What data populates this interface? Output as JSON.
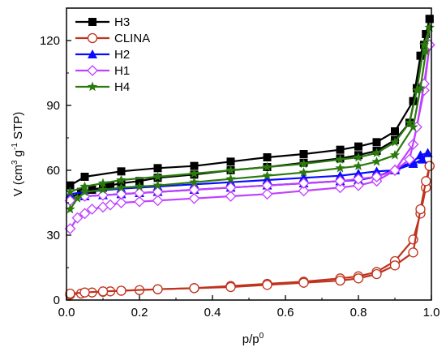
{
  "chart_data": {
    "type": "line",
    "xlabel": "p/p",
    "xlabel_sup": "0",
    "ylabel_parts": [
      "V (cm",
      "3",
      " g",
      "-1",
      " STP)"
    ],
    "xlim": [
      0.0,
      1.0
    ],
    "ylim": [
      0,
      135
    ],
    "xticks": [
      0.0,
      0.2,
      0.4,
      0.6,
      0.8,
      1.0
    ],
    "xtick_labels": [
      "0.0",
      "0.2",
      "0.4",
      "0.6",
      "0.8",
      "1.0"
    ],
    "yticks": [
      0,
      30,
      60,
      90,
      120
    ],
    "ytick_labels": [
      "0",
      "30",
      "60",
      "90",
      "120"
    ],
    "grid": false,
    "legend_position": "top-left",
    "series": [
      {
        "name": "H3",
        "color": "#000000",
        "marker": "square",
        "adsorption": [
          [
            0.01,
            53
          ],
          [
            0.05,
            57
          ],
          [
            0.15,
            59.5
          ],
          [
            0.25,
            61
          ],
          [
            0.35,
            62
          ],
          [
            0.45,
            64
          ],
          [
            0.55,
            66
          ],
          [
            0.65,
            67.5
          ],
          [
            0.75,
            69.5
          ],
          [
            0.8,
            71
          ],
          [
            0.85,
            73
          ],
          [
            0.9,
            78
          ],
          [
            0.95,
            92
          ],
          [
            0.97,
            113
          ],
          [
            0.985,
            123
          ],
          [
            0.995,
            130
          ]
        ],
        "desorption": [
          [
            0.995,
            130
          ],
          [
            0.98,
            118
          ],
          [
            0.96,
            98
          ],
          [
            0.94,
            82
          ],
          [
            0.9,
            74
          ],
          [
            0.85,
            69
          ],
          [
            0.8,
            67
          ],
          [
            0.75,
            65.5
          ],
          [
            0.65,
            63.5
          ],
          [
            0.55,
            61.5
          ],
          [
            0.45,
            60
          ],
          [
            0.35,
            58
          ],
          [
            0.25,
            56.5
          ],
          [
            0.2,
            55
          ],
          [
            0.15,
            54
          ],
          [
            0.12,
            53
          ],
          [
            0.1,
            52
          ],
          [
            0.07,
            51
          ],
          [
            0.04,
            50
          ],
          [
            0.01,
            47
          ]
        ]
      },
      {
        "name": "CLINA",
        "color": "#c0331e",
        "marker": "circle",
        "adsorption": [
          [
            0.01,
            2.5
          ],
          [
            0.04,
            3
          ],
          [
            0.07,
            3.5
          ],
          [
            0.1,
            3.8
          ],
          [
            0.12,
            4
          ],
          [
            0.15,
            4.3
          ],
          [
            0.2,
            4.6
          ],
          [
            0.25,
            5
          ],
          [
            0.35,
            5.5
          ],
          [
            0.45,
            6.5
          ],
          [
            0.55,
            7.5
          ],
          [
            0.65,
            8.5
          ],
          [
            0.75,
            10
          ],
          [
            0.8,
            11
          ],
          [
            0.85,
            13
          ],
          [
            0.9,
            18
          ],
          [
            0.95,
            28
          ],
          [
            0.97,
            40
          ],
          [
            0.985,
            52
          ],
          [
            0.995,
            62
          ]
        ],
        "desorption": [
          [
            0.995,
            62
          ],
          [
            0.985,
            55
          ],
          [
            0.97,
            42
          ],
          [
            0.95,
            22
          ],
          [
            0.9,
            16
          ],
          [
            0.85,
            12
          ],
          [
            0.8,
            10
          ],
          [
            0.75,
            9
          ],
          [
            0.65,
            8
          ],
          [
            0.55,
            7
          ],
          [
            0.45,
            6
          ],
          [
            0.35,
            5.5
          ],
          [
            0.25,
            5
          ],
          [
            0.15,
            4.3
          ],
          [
            0.1,
            4
          ],
          [
            0.05,
            3.5
          ],
          [
            0.01,
            3
          ]
        ]
      },
      {
        "name": "H2",
        "color": "#0a0aff",
        "marker": "triangle",
        "adsorption": [
          [
            0.01,
            49
          ],
          [
            0.05,
            50
          ],
          [
            0.15,
            51.5
          ],
          [
            0.25,
            52.5
          ],
          [
            0.35,
            53.5
          ],
          [
            0.45,
            54.5
          ],
          [
            0.55,
            55.5
          ],
          [
            0.65,
            56.5
          ],
          [
            0.75,
            57.5
          ],
          [
            0.8,
            58.5
          ],
          [
            0.85,
            59.5
          ],
          [
            0.9,
            60
          ],
          [
            0.95,
            63
          ],
          [
            0.975,
            65
          ],
          [
            0.99,
            68
          ]
        ],
        "desorption": [
          [
            0.99,
            68
          ],
          [
            0.97,
            67
          ],
          [
            0.95,
            64
          ],
          [
            0.9,
            60.5
          ],
          [
            0.85,
            57
          ],
          [
            0.8,
            55.5
          ],
          [
            0.75,
            55
          ],
          [
            0.65,
            54
          ],
          [
            0.55,
            53
          ],
          [
            0.45,
            52
          ],
          [
            0.35,
            51
          ],
          [
            0.25,
            50
          ],
          [
            0.2,
            49.5
          ],
          [
            0.15,
            49
          ],
          [
            0.1,
            48.5
          ],
          [
            0.05,
            48
          ],
          [
            0.01,
            47
          ]
        ]
      },
      {
        "name": "H1",
        "color": "#c040ff",
        "marker": "diamond",
        "adsorption": [
          [
            0.01,
            33
          ],
          [
            0.03,
            38
          ],
          [
            0.05,
            40
          ],
          [
            0.07,
            42
          ],
          [
            0.1,
            43
          ],
          [
            0.12,
            44
          ],
          [
            0.15,
            45
          ],
          [
            0.2,
            45.5
          ],
          [
            0.25,
            46
          ],
          [
            0.35,
            47
          ],
          [
            0.45,
            48
          ],
          [
            0.55,
            49
          ],
          [
            0.65,
            50.5
          ],
          [
            0.75,
            52
          ],
          [
            0.8,
            53
          ],
          [
            0.85,
            55
          ],
          [
            0.9,
            60
          ],
          [
            0.95,
            72
          ],
          [
            0.98,
            97
          ],
          [
            0.995,
            118
          ]
        ],
        "desorption": [
          [
            0.995,
            118
          ],
          [
            0.98,
            100
          ],
          [
            0.96,
            80
          ],
          [
            0.94,
            65
          ],
          [
            0.9,
            60
          ],
          [
            0.85,
            57
          ],
          [
            0.8,
            56
          ],
          [
            0.75,
            55
          ],
          [
            0.65,
            54
          ],
          [
            0.55,
            53
          ],
          [
            0.45,
            52
          ],
          [
            0.35,
            51
          ],
          [
            0.25,
            50
          ],
          [
            0.2,
            49.5
          ],
          [
            0.15,
            49
          ],
          [
            0.1,
            48.5
          ],
          [
            0.05,
            48
          ],
          [
            0.01,
            46
          ]
        ]
      },
      {
        "name": "H4",
        "color": "#2a7a0e",
        "marker": "star",
        "adsorption": [
          [
            0.01,
            42
          ],
          [
            0.03,
            47
          ],
          [
            0.05,
            50
          ],
          [
            0.1,
            51
          ],
          [
            0.15,
            52
          ],
          [
            0.2,
            52.5
          ],
          [
            0.25,
            53
          ],
          [
            0.35,
            54.5
          ],
          [
            0.45,
            56
          ],
          [
            0.55,
            57.5
          ],
          [
            0.65,
            59
          ],
          [
            0.75,
            61
          ],
          [
            0.8,
            62
          ],
          [
            0.85,
            64
          ],
          [
            0.9,
            67
          ],
          [
            0.95,
            80
          ],
          [
            0.97,
            98
          ],
          [
            0.985,
            115
          ],
          [
            0.995,
            126
          ]
        ],
        "desorption": [
          [
            0.995,
            126
          ],
          [
            0.98,
            118
          ],
          [
            0.96,
            97
          ],
          [
            0.94,
            82
          ],
          [
            0.9,
            73
          ],
          [
            0.85,
            68
          ],
          [
            0.8,
            66
          ],
          [
            0.75,
            65
          ],
          [
            0.65,
            63
          ],
          [
            0.55,
            61.5
          ],
          [
            0.45,
            60
          ],
          [
            0.35,
            58.5
          ],
          [
            0.25,
            57
          ],
          [
            0.15,
            55.5
          ],
          [
            0.1,
            54
          ],
          [
            0.05,
            52.5
          ],
          [
            0.01,
            50
          ]
        ]
      }
    ]
  }
}
